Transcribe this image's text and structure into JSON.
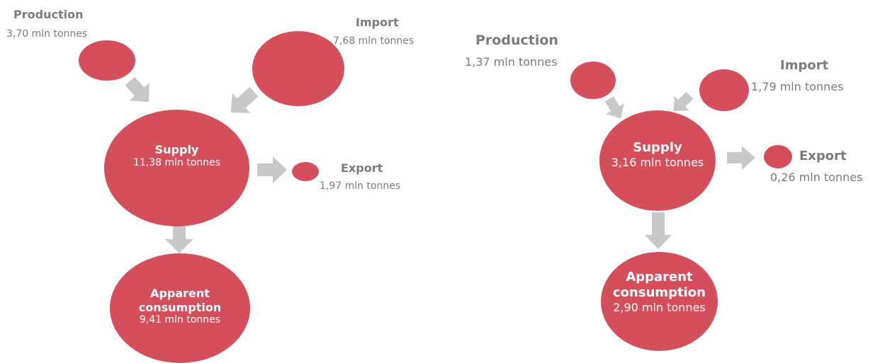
{
  "colors": {
    "bubble": "#d44e5c",
    "arrow": "#c8c8c8",
    "label": "#7b7b7b",
    "bubble_text": "#ffffff"
  },
  "diagrams": [
    {
      "production": {
        "title": "Production",
        "value": "3,70 mln tonnes"
      },
      "import": {
        "title": "Import",
        "value": "7,68 mln tonnes"
      },
      "supply": {
        "title": "Supply",
        "value": "11,38 mln tonnes"
      },
      "export": {
        "title": "Export",
        "value": "1,97 mln tonnes"
      },
      "consumption": {
        "title_line1": "Apparent",
        "title_line2": "consumption",
        "value": "9,41 mln tonnes"
      }
    },
    {
      "production": {
        "title": "Production",
        "value": "1,37 mln tonnes"
      },
      "import": {
        "title": "Import",
        "value": "1,79 mln tonnes"
      },
      "supply": {
        "title": "Supply",
        "value": "3,16 mln tonnes"
      },
      "export": {
        "title": "Export",
        "value": "0,26 mln tonnes"
      },
      "consumption": {
        "title_line1": "Apparent",
        "title_line2": "consumption",
        "value": "2,90 mln tonnes"
      }
    }
  ]
}
